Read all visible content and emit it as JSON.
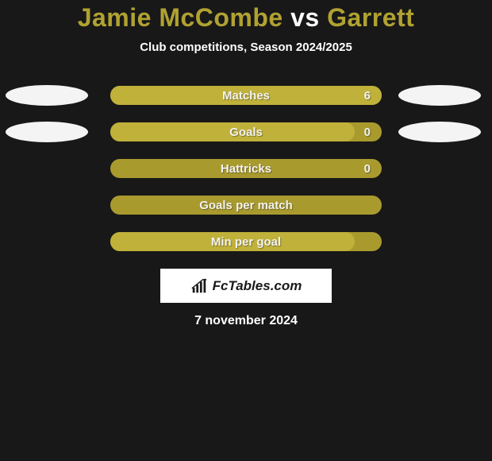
{
  "background_color": "#181818",
  "title": {
    "player1": "Jamie McCombe",
    "vs": " vs ",
    "player2": "Garrett",
    "player1_color": "#b0a231",
    "vs_color": "#ffffff",
    "player2_color": "#b0a231"
  },
  "subtitle": {
    "text": "Club competitions, Season 2024/2025",
    "color": "#ffffff"
  },
  "bar_defaults": {
    "bar_bg": "#a99a2e",
    "text_color": "#f2f2f2",
    "fill_color": "#c0b13a",
    "ellipse_color": "#f4f4f4"
  },
  "rows": [
    {
      "label": "Matches",
      "value_right": "6",
      "fill_pct": 100,
      "show_ellipses": true
    },
    {
      "label": "Goals",
      "value_right": "0",
      "fill_pct": 90,
      "show_ellipses": true
    },
    {
      "label": "Hattricks",
      "value_right": "0",
      "fill_pct": 0,
      "show_ellipses": false
    },
    {
      "label": "Goals per match",
      "value_right": "",
      "fill_pct": 0,
      "show_ellipses": false
    },
    {
      "label": "Min per goal",
      "value_right": "",
      "fill_pct": 90,
      "show_ellipses": false
    }
  ],
  "badge": {
    "bg": "#ffffff",
    "text_color": "#1a1a1a",
    "text": "FcTables.com"
  },
  "date": {
    "text": "7 november 2024",
    "color": "#ffffff"
  }
}
